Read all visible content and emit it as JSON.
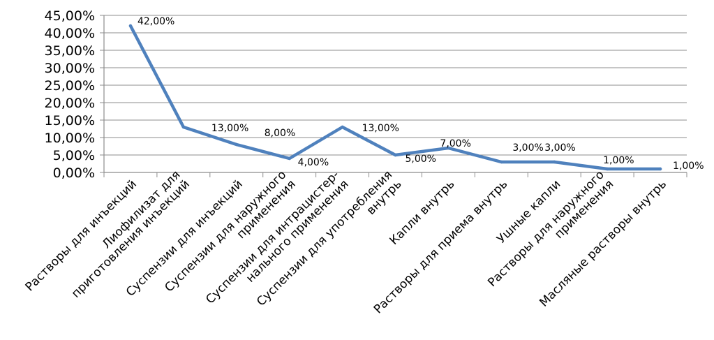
{
  "chart_data": {
    "type": "line",
    "title": "",
    "xlabel": "",
    "ylabel": "",
    "ylim": [
      0,
      45
    ],
    "y_step": 5,
    "y_tick_labels": [
      "0,00%",
      "5,00%",
      "10,00%",
      "15,00%",
      "20,00%",
      "25,00%",
      "30,00%",
      "35,00%",
      "40,00%",
      "45,00%"
    ],
    "grid": "horizontal",
    "legend": "none",
    "line_color": "#4f81bd",
    "categories": [
      [
        "Растворы для инъекций"
      ],
      [
        "Лиофилизат для",
        "приготовления инъекций"
      ],
      [
        "Суспензии для инъекций"
      ],
      [
        "Суспензии для наружного",
        "применения"
      ],
      [
        "Суспензии для интрацистер-",
        "нального  применения"
      ],
      [
        "Суспензии для употребления",
        "внутрь"
      ],
      [
        "Капли внутрь"
      ],
      [
        "Растворы для приема внутрь"
      ],
      [
        "Ушные капли"
      ],
      [
        "Растворы для наружного",
        "применения"
      ],
      [
        "Масляные растворы внутрь"
      ]
    ],
    "values": [
      42,
      13,
      8,
      4,
      13,
      5,
      7,
      3,
      3,
      1,
      1
    ],
    "data_labels": [
      "42,00%",
      "13,00%",
      "8,00%",
      "4,00%",
      "13,00%",
      "5,00%",
      "7,00%",
      "3,00%",
      "3,00%",
      "1,00%",
      "1,00%"
    ]
  }
}
